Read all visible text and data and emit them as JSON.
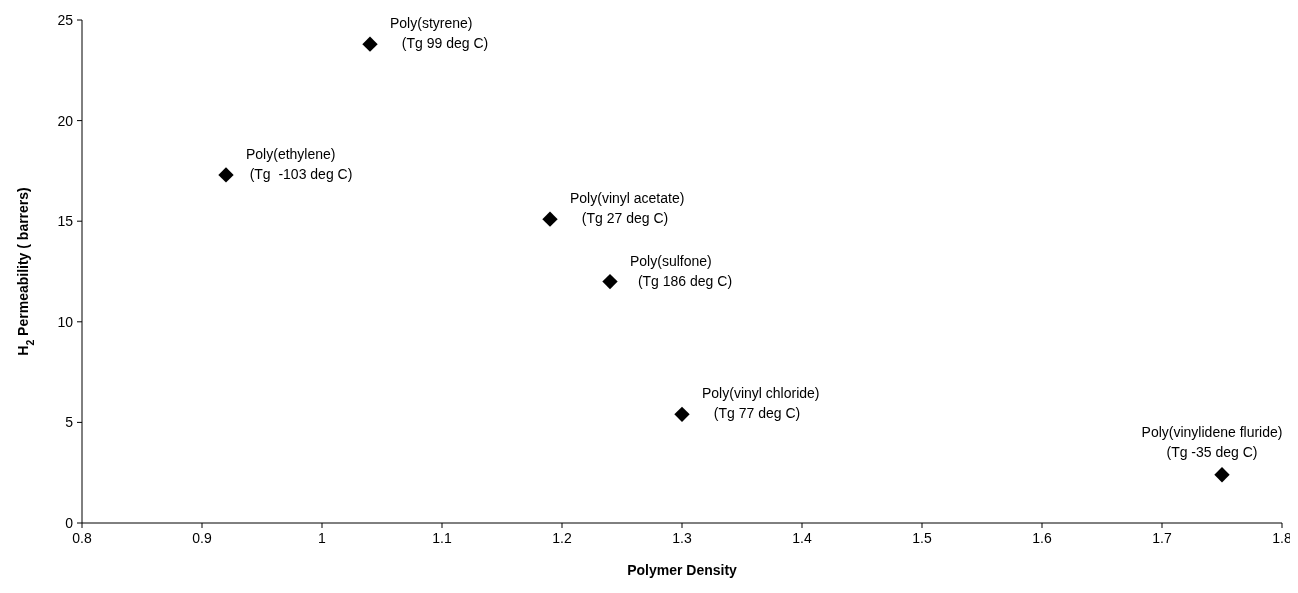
{
  "chart_data": {
    "type": "scatter",
    "xlabel": "Polymer Density",
    "ylabel": "H$_{2}$ Permeability ( barrers)",
    "x": [
      0.92,
      1.04,
      1.19,
      1.24,
      1.3,
      1.75
    ],
    "series": [
      {
        "color": "#000000",
        "values": [
          17.3,
          23.8,
          15.1,
          12,
          5.4,
          2.4
        ]
      }
    ],
    "xlim": [
      0.8,
      1.8
    ],
    "xticks": [
      0.8,
      0.9,
      1,
      1.1,
      1.2,
      1.3,
      1.4,
      1.5,
      1.6,
      1.7,
      1.8
    ],
    "ylim": [
      0,
      25
    ],
    "yticks": [
      0,
      5,
      10,
      15,
      20,
      25
    ],
    "marker": "diamond",
    "grid": false,
    "annotations": [
      {
        "text": "Poly(ethylene)\n(Tg  -103 deg C)",
        "x": 0.92,
        "y": 17.3
      },
      {
        "text": "Poly(styrene)\n(Tg 99 deg C)",
        "x": 1.04,
        "y": 23.8
      },
      {
        "text": "Poly(vinyl acetate)\n(Tg 27 deg C)",
        "x": 1.19,
        "y": 15.1
      },
      {
        "text": "Poly(sulfone)\n(Tg 186 deg C)",
        "x": 1.24,
        "y": 12
      },
      {
        "text": "Poly(vinyl chloride)\n(Tg 77 deg C)",
        "x": 1.3,
        "y": 5.4
      },
      {
        "text": "Poly(vinylidene fluride)\n(Tg -35 deg C)",
        "x": 1.75,
        "y": 2.4
      }
    ]
  }
}
